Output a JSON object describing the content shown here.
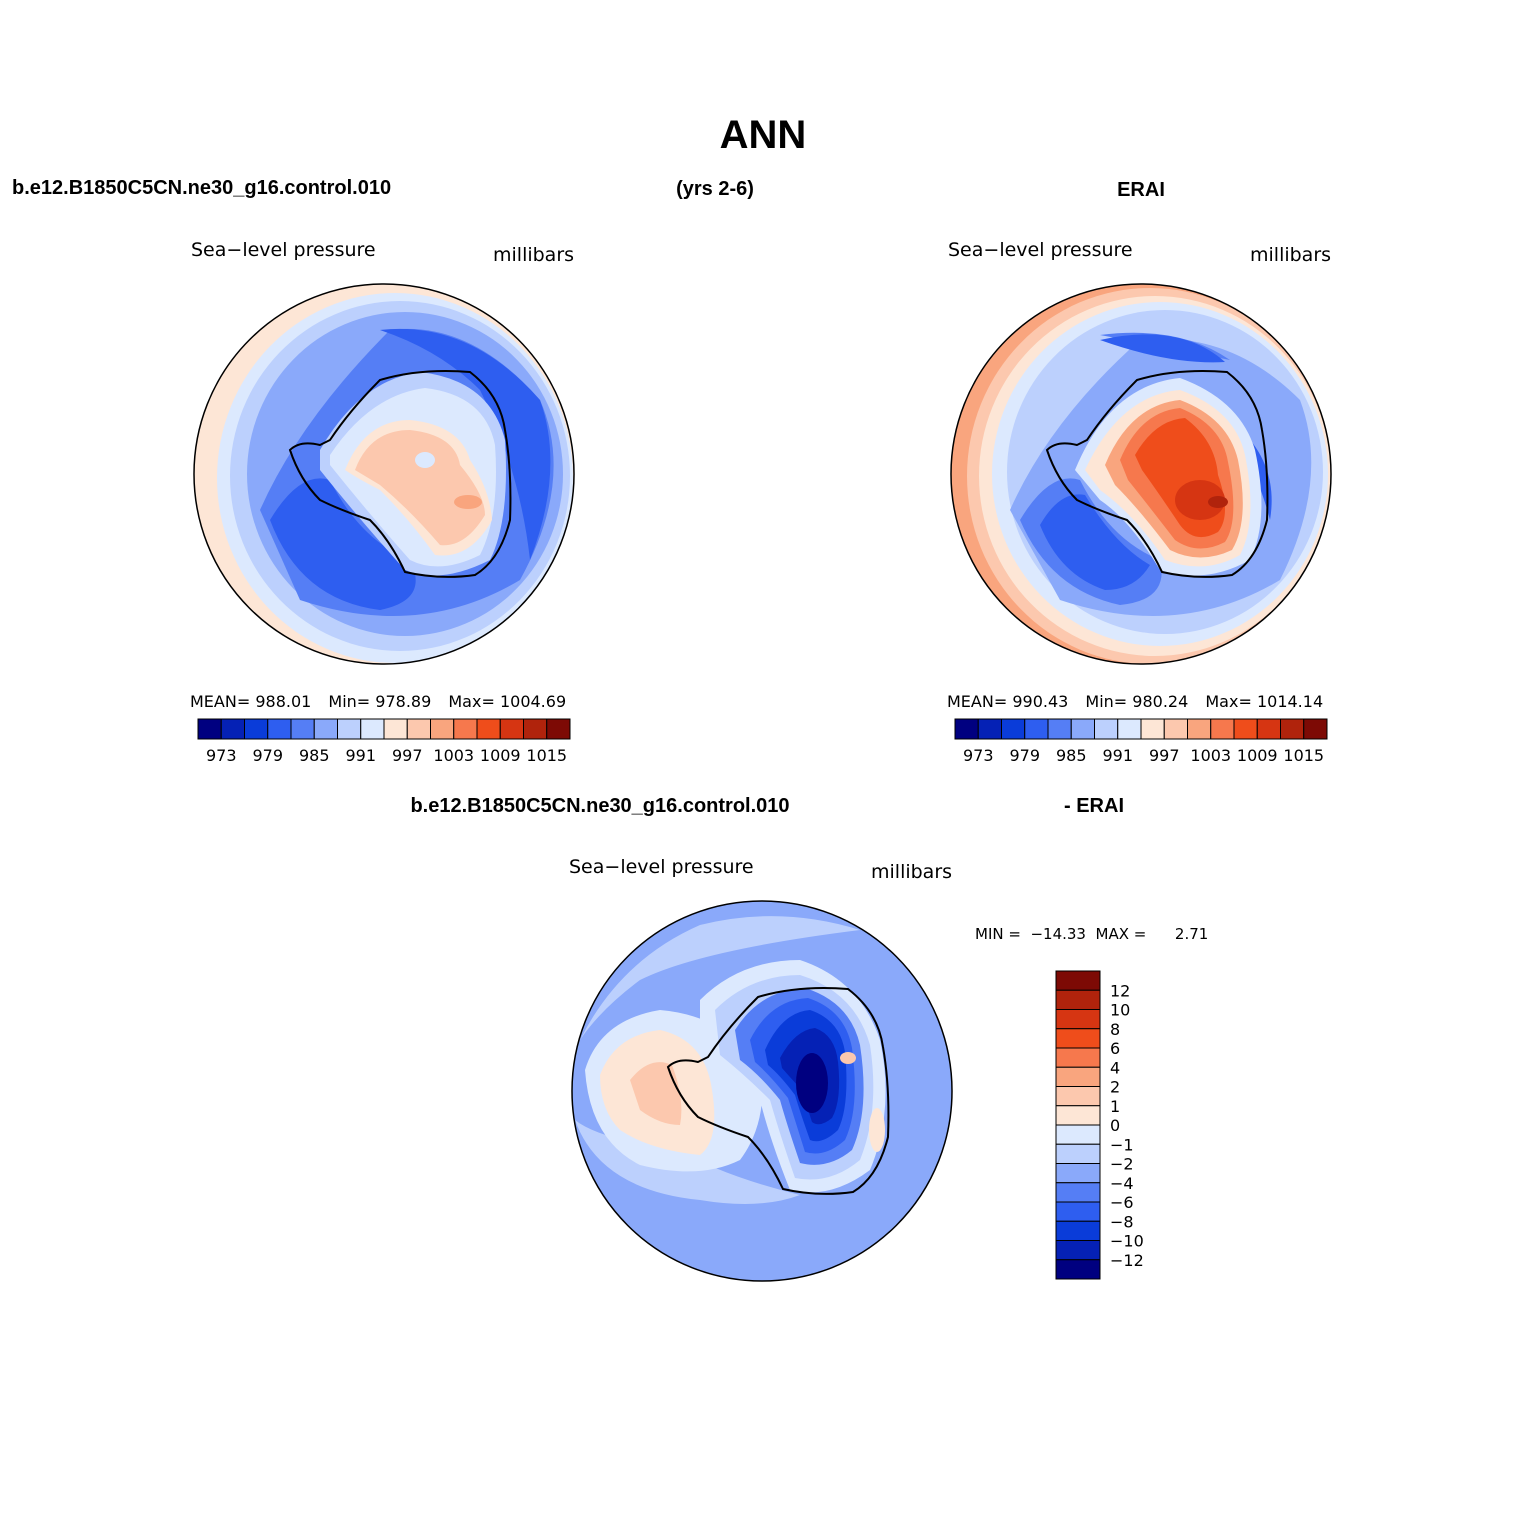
{
  "title": "ANN",
  "case_name": "b.e12.B1850C5CN.ne30_g16.control.010",
  "years": "(yrs 2-6)",
  "obs_name": "ERAI",
  "diff_suffix": "- ERAI",
  "panels": {
    "model": {
      "variable": "Sea−level pressure",
      "units": "millibars",
      "mean_label": "MEAN=",
      "mean": "988.01",
      "min_label": "Min=",
      "min": "978.89",
      "max_label": "Max=",
      "max": "1004.69"
    },
    "obs": {
      "variable": "Sea−level pressure",
      "units": "millibars",
      "mean_label": "MEAN=",
      "mean": "990.43",
      "min_label": "Min=",
      "min": "980.24",
      "max_label": "Max=",
      "max": "1014.14"
    },
    "diff": {
      "variable": "Sea−level pressure",
      "units": "millibars",
      "minmax_text": "MIN =  −14.33  MAX =      2.71"
    }
  },
  "colorbar_abs": {
    "colors": [
      "#000080",
      "#0521b5",
      "#0a3cd9",
      "#2e5ef0",
      "#557ef5",
      "#8aa9fa",
      "#bcd0fd",
      "#dce9fe",
      "#fde6d6",
      "#fcc8ae",
      "#f9a57e",
      "#f6784d",
      "#ef4d1b",
      "#d63512",
      "#b0230c",
      "#7d0a05"
    ],
    "labels": [
      "973",
      "979",
      "985",
      "991",
      "997",
      "1003",
      "1009",
      "1015"
    ]
  },
  "colorbar_diff": {
    "colors": [
      "#7d0a05",
      "#b0230c",
      "#d63512",
      "#ef4d1b",
      "#f6784d",
      "#f9a57e",
      "#fcc8ae",
      "#fde6d6",
      "#dce9fe",
      "#bcd0fd",
      "#8aa9fa",
      "#557ef5",
      "#2e5ef0",
      "#0a3cd9",
      "#0521b5",
      "#000080"
    ],
    "labels": [
      "12",
      "10",
      "8",
      "6",
      "4",
      "2",
      "1",
      "0",
      "−1",
      "−2",
      "−4",
      "−6",
      "−8",
      "−10",
      "−12"
    ]
  }
}
